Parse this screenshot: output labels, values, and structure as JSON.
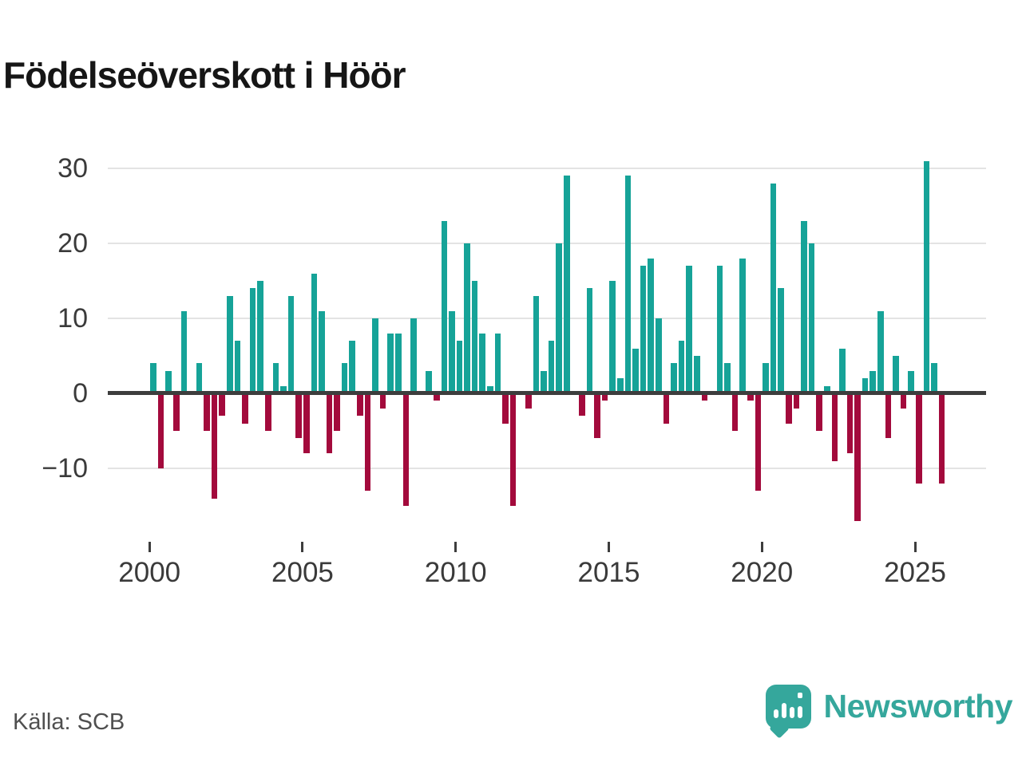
{
  "title": "Födelseöverskott i Höör",
  "source": "Källa: SCB",
  "logo": {
    "text": "Newsworthy"
  },
  "colors": {
    "positive": "#16a398",
    "negative": "#a30a3c",
    "axis": "#3d3d3d",
    "grid": "#e3e3e3",
    "labels": "#3a3a3a",
    "logo": "#35a79c"
  },
  "chart_data": {
    "type": "bar",
    "title": "Födelseöverskott i Höör",
    "frequency": "quarterly",
    "x_start": "2000Q1",
    "x_end": "2025Q4",
    "xlabel": "",
    "ylabel": "",
    "ylim": [
      -17,
      31
    ],
    "yticks": [
      30,
      20,
      10,
      0,
      -10
    ],
    "xtick_years": [
      2000,
      2005,
      2010,
      2015,
      2020,
      2025
    ],
    "grid": "horizontal",
    "legend": "none",
    "positive_color": "#16a398",
    "negative_color": "#a30a3c",
    "values_by_year": [
      {
        "year": 2000,
        "q": [
          4,
          -10,
          3,
          -5
        ]
      },
      {
        "year": 2001,
        "q": [
          11,
          0,
          4,
          -5
        ]
      },
      {
        "year": 2002,
        "q": [
          -14,
          -3,
          13,
          7
        ]
      },
      {
        "year": 2003,
        "q": [
          -4,
          14,
          15,
          -5
        ]
      },
      {
        "year": 2004,
        "q": [
          4,
          1,
          13,
          -6
        ]
      },
      {
        "year": 2005,
        "q": [
          -8,
          16,
          11,
          -8
        ]
      },
      {
        "year": 2006,
        "q": [
          -5,
          4,
          7,
          -3
        ]
      },
      {
        "year": 2007,
        "q": [
          -13,
          10,
          -2,
          8
        ]
      },
      {
        "year": 2008,
        "q": [
          8,
          -15,
          10,
          0
        ]
      },
      {
        "year": 2009,
        "q": [
          3,
          -1,
          23,
          11
        ]
      },
      {
        "year": 2010,
        "q": [
          7,
          20,
          15,
          8
        ]
      },
      {
        "year": 2011,
        "q": [
          1,
          8,
          -4,
          -15
        ]
      },
      {
        "year": 2012,
        "q": [
          0,
          -2,
          13,
          3
        ]
      },
      {
        "year": 2013,
        "q": [
          7,
          20,
          29,
          0
        ]
      },
      {
        "year": 2014,
        "q": [
          -3,
          14,
          -6,
          -1
        ]
      },
      {
        "year": 2015,
        "q": [
          15,
          2,
          29,
          6
        ]
      },
      {
        "year": 2016,
        "q": [
          17,
          18,
          10,
          -4
        ]
      },
      {
        "year": 2017,
        "q": [
          4,
          7,
          17,
          5
        ]
      },
      {
        "year": 2018,
        "q": [
          -1,
          0,
          17,
          4
        ]
      },
      {
        "year": 2019,
        "q": [
          -5,
          18,
          -1,
          -13
        ]
      },
      {
        "year": 2020,
        "q": [
          4,
          28,
          14,
          -4
        ]
      },
      {
        "year": 2021,
        "q": [
          -2,
          23,
          20,
          -5
        ]
      },
      {
        "year": 2022,
        "q": [
          1,
          -9,
          6,
          -8
        ]
      },
      {
        "year": 2023,
        "q": [
          -17,
          2,
          3,
          11
        ]
      },
      {
        "year": 2024,
        "q": [
          -6,
          5,
          -2,
          3
        ]
      },
      {
        "year": 2025,
        "q": [
          -12,
          31,
          4,
          -12
        ]
      }
    ]
  }
}
